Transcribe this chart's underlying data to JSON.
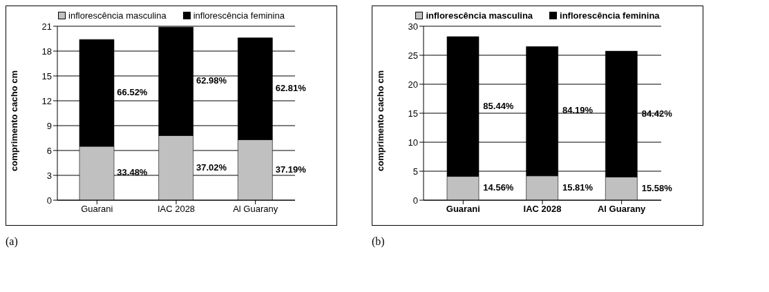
{
  "chart_data": [
    {
      "type": "bar",
      "stacked": true,
      "categories": [
        "Guarani",
        "IAC 2028",
        "Al Guarany"
      ],
      "ylabel": "comprimento cacho cm",
      "ylim": [
        0,
        21
      ],
      "yticks": [
        0,
        3,
        6,
        9,
        12,
        15,
        18,
        21
      ],
      "grid": "y",
      "legend": "top",
      "annotations": [
        "33.48%",
        "37.02%",
        "37.19%",
        "66.52%",
        "62.98%",
        "62.81%",
        "(a)"
      ],
      "series": [
        {
          "name": "inflorescência masculina",
          "color": "#c0c0c0",
          "values": [
            6.5,
            7.8,
            7.3
          ]
        },
        {
          "name": "inflorescência feminina",
          "color": "#000000",
          "values": [
            12.9,
            13.1,
            12.3
          ]
        }
      ]
    },
    {
      "type": "bar",
      "stacked": true,
      "categories": [
        "Guarani",
        "IAC 2028",
        "Al Guarany"
      ],
      "ylabel": "comprimento cacho cm",
      "ylim": [
        0,
        30
      ],
      "yticks": [
        0,
        5,
        10,
        15,
        20,
        25,
        30
      ],
      "grid": "y",
      "legend": "top",
      "annotations": [
        "14.56%",
        "15.81%",
        "15.58%",
        "85.44%",
        "84.19%",
        "84.42%",
        "(b)"
      ],
      "series": [
        {
          "name": "inflorescência masculina",
          "color": "#c0c0c0",
          "values": [
            4.1,
            4.2,
            4.0
          ]
        },
        {
          "name": "inflorescência feminina",
          "color": "#000000",
          "values": [
            24.1,
            22.3,
            21.7
          ]
        }
      ]
    }
  ]
}
